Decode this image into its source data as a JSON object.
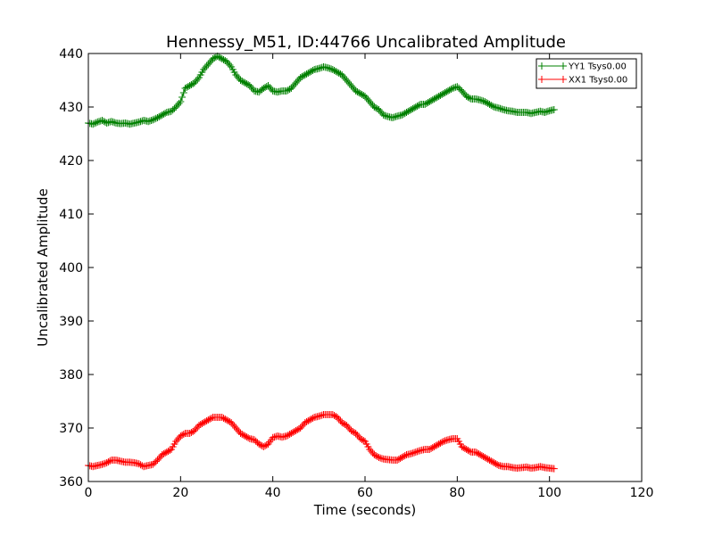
{
  "chart_data": {
    "type": "line",
    "title": "Hennessy_M51, ID:44766 Uncalibrated Amplitude",
    "xlabel": "Time (seconds)",
    "ylabel": "Uncalibrated Amplitude",
    "xlim": [
      0,
      120
    ],
    "ylim": [
      360,
      440
    ],
    "xticks": [
      "0",
      "20",
      "40",
      "60",
      "80",
      "100",
      "120"
    ],
    "yticks": [
      "360",
      "370",
      "380",
      "390",
      "400",
      "410",
      "420",
      "430",
      "440"
    ],
    "grid": false,
    "legend_position": "top-right",
    "series": [
      {
        "name": "YY1 Tsys0.00",
        "color": "#008000",
        "marker": "plus",
        "x": [
          0,
          1,
          2,
          3,
          4,
          5,
          6,
          7,
          8,
          9,
          10,
          11,
          12,
          13,
          14,
          15,
          16,
          17,
          18,
          19,
          20,
          21,
          22,
          23,
          24,
          25,
          26,
          27,
          28,
          29,
          30,
          31,
          32,
          33,
          34,
          35,
          36,
          37,
          38,
          39,
          40,
          41,
          42,
          43,
          44,
          45,
          46,
          47,
          48,
          49,
          50,
          51,
          52,
          53,
          54,
          55,
          56,
          57,
          58,
          59,
          60,
          61,
          62,
          63,
          64,
          65,
          66,
          67,
          68,
          69,
          70,
          71,
          72,
          73,
          74,
          75,
          76,
          77,
          78,
          79,
          80,
          81,
          82,
          83,
          84,
          85,
          86,
          87,
          88,
          89,
          90,
          91,
          92,
          93,
          94,
          95,
          96,
          97,
          98,
          99,
          100,
          101
        ],
        "y": [
          427,
          426.8,
          427.2,
          427.5,
          427,
          427.3,
          427,
          426.9,
          427,
          426.8,
          427,
          427.2,
          427.5,
          427.3,
          427.6,
          428,
          428.5,
          429,
          429.2,
          430,
          431,
          433.5,
          434,
          434.5,
          435.5,
          437,
          438,
          439,
          439.5,
          439,
          438.5,
          437.5,
          436,
          435,
          434.5,
          434,
          433,
          432.8,
          433.5,
          434,
          433,
          432.8,
          433,
          433,
          433.5,
          434.5,
          435.5,
          436,
          436.5,
          437,
          437.2,
          437.5,
          437.3,
          437,
          436.5,
          436,
          435,
          434,
          433,
          432.5,
          432,
          431,
          430,
          429.5,
          428.5,
          428.2,
          428,
          428.3,
          428.5,
          429,
          429.5,
          430,
          430.5,
          430.5,
          431,
          431.5,
          432,
          432.5,
          433,
          433.5,
          433.8,
          433,
          432,
          431.5,
          431.5,
          431.3,
          431,
          430.5,
          430,
          429.8,
          429.5,
          429.3,
          429.2,
          429,
          429,
          429,
          428.8,
          429,
          429.2,
          429,
          429.3,
          429.5
        ]
      },
      {
        "name": "XX1 Tsys0.00",
        "color": "#ff0000",
        "marker": "plus",
        "x": [
          0,
          1,
          2,
          3,
          4,
          5,
          6,
          7,
          8,
          9,
          10,
          11,
          12,
          13,
          14,
          15,
          16,
          17,
          18,
          19,
          20,
          21,
          22,
          23,
          24,
          25,
          26,
          27,
          28,
          29,
          30,
          31,
          32,
          33,
          34,
          35,
          36,
          37,
          38,
          39,
          40,
          41,
          42,
          43,
          44,
          45,
          46,
          47,
          48,
          49,
          50,
          51,
          52,
          53,
          54,
          55,
          56,
          57,
          58,
          59,
          60,
          61,
          62,
          63,
          64,
          65,
          66,
          67,
          68,
          69,
          70,
          71,
          72,
          73,
          74,
          75,
          76,
          77,
          78,
          79,
          80,
          81,
          82,
          83,
          84,
          85,
          86,
          87,
          88,
          89,
          90,
          91,
          92,
          93,
          94,
          95,
          96,
          97,
          98,
          99,
          100,
          101
        ],
        "y": [
          363,
          362.8,
          363,
          363.2,
          363.5,
          364,
          364,
          363.8,
          363.6,
          363.6,
          363.5,
          363.3,
          362.8,
          363,
          363.2,
          364,
          365,
          365.5,
          366,
          367.5,
          368.5,
          369,
          369,
          369.5,
          370.5,
          371,
          371.5,
          372,
          372,
          372,
          371.5,
          371,
          370,
          369,
          368.5,
          368,
          367.8,
          367,
          366.5,
          367,
          368.2,
          368.5,
          368.3,
          368.5,
          369,
          369.5,
          370,
          371,
          371.5,
          372,
          372.2,
          372.5,
          372.5,
          372.5,
          372,
          371,
          370.5,
          369.5,
          369,
          368,
          367.5,
          366,
          365,
          364.5,
          364.2,
          364.1,
          364,
          364,
          364.5,
          365,
          365.2,
          365.5,
          365.8,
          366,
          366,
          366.5,
          367,
          367.5,
          367.8,
          368,
          368,
          366.5,
          366,
          365.5,
          365.5,
          365,
          364.5,
          364,
          363.5,
          363,
          362.8,
          362.8,
          362.6,
          362.5,
          362.6,
          362.7,
          362.5,
          362.6,
          362.8,
          362.6,
          362.5,
          362.4
        ]
      }
    ]
  }
}
